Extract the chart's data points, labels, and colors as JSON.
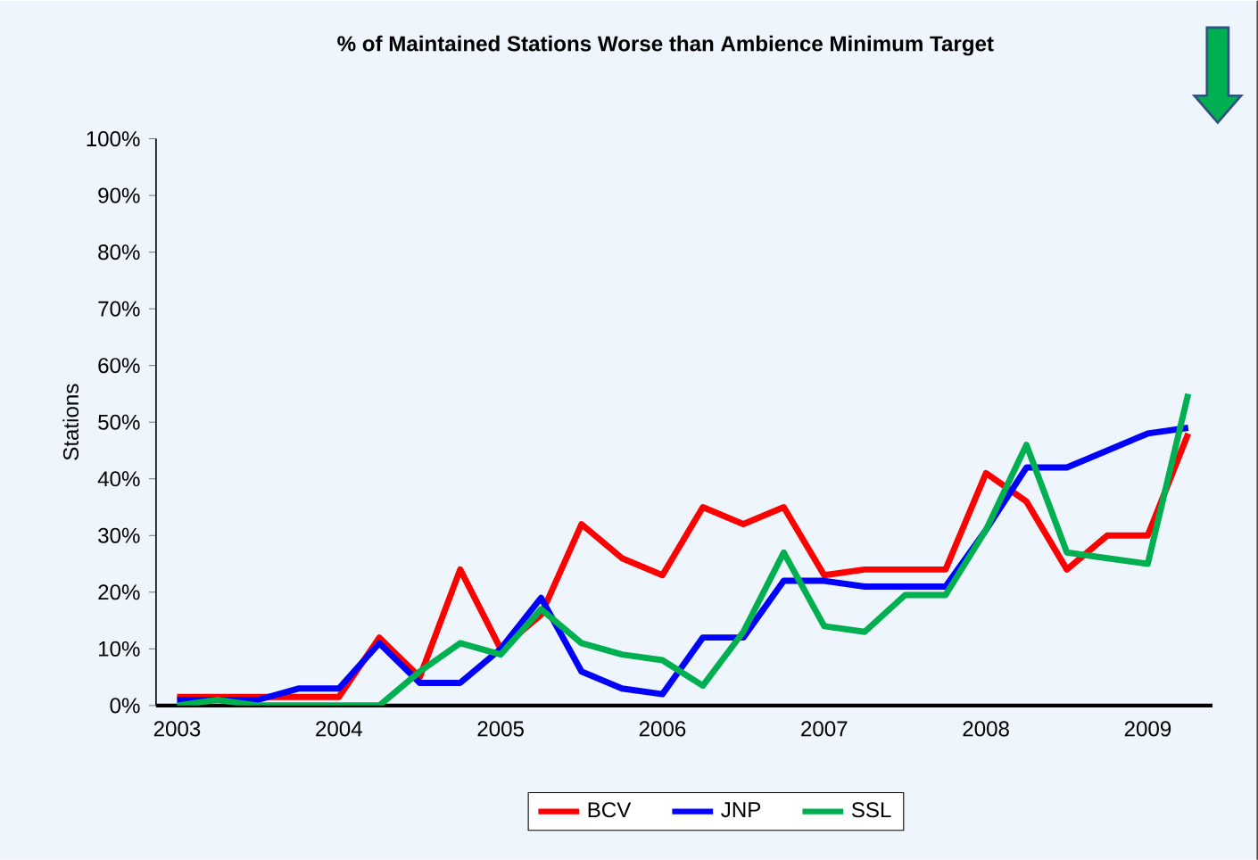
{
  "chart_data": {
    "type": "line",
    "title": "% of Maintained Stations Worse than Ambience Minimum Target",
    "ylabel": "Stations",
    "x": [
      2003,
      2003.25,
      2003.5,
      2003.75,
      2004,
      2004.25,
      2004.5,
      2004.75,
      2005,
      2005.25,
      2005.5,
      2005.75,
      2006,
      2006.25,
      2006.5,
      2006.75,
      2007,
      2007.25,
      2007.5,
      2007.75,
      2008,
      2008.25,
      2008.5,
      2008.75,
      2009,
      2009.25
    ],
    "xlim": [
      2002.87,
      2009.4
    ],
    "xticks": [
      2003,
      2004,
      2005,
      2006,
      2007,
      2008,
      2009
    ],
    "ylim": [
      0,
      100
    ],
    "yticks": [
      {
        "value": 0,
        "label": "0%"
      },
      {
        "value": 10,
        "label": "10%"
      },
      {
        "value": 20,
        "label": "20%"
      },
      {
        "value": 30,
        "label": "30%"
      },
      {
        "value": 40,
        "label": "40%"
      },
      {
        "value": 50,
        "label": "50%"
      },
      {
        "value": 60,
        "label": "60%"
      },
      {
        "value": 70,
        "label": "70%"
      },
      {
        "value": 80,
        "label": "80%"
      },
      {
        "value": 90,
        "label": "90%"
      },
      {
        "value": 100,
        "label": "100%"
      }
    ],
    "legend": "bottom",
    "line_style": "solid",
    "series": [
      {
        "name": "BCV",
        "color": "#ff0000",
        "values": [
          1.5,
          1.5,
          1.5,
          1.5,
          1.5,
          12,
          5,
          24,
          10,
          16,
          32,
          26,
          23,
          35,
          32,
          35,
          23,
          24,
          24,
          24,
          41,
          36,
          24,
          30,
          30,
          48
        ]
      },
      {
        "name": "JNP",
        "color": "#0000ff",
        "values": [
          1,
          1,
          1,
          3,
          3,
          11,
          4,
          4,
          10,
          19,
          6,
          3,
          2,
          12,
          12,
          22,
          22,
          21,
          21,
          21,
          31,
          42,
          42,
          45,
          48,
          49
        ]
      },
      {
        "name": "SSL",
        "color": "#00b050",
        "values": [
          0,
          1,
          0,
          0,
          0,
          0,
          6,
          11,
          9,
          17,
          11,
          9,
          8,
          3.5,
          13,
          27,
          14,
          13,
          19.5,
          19.5,
          31,
          46,
          27,
          26,
          25,
          55
        ]
      }
    ]
  }
}
